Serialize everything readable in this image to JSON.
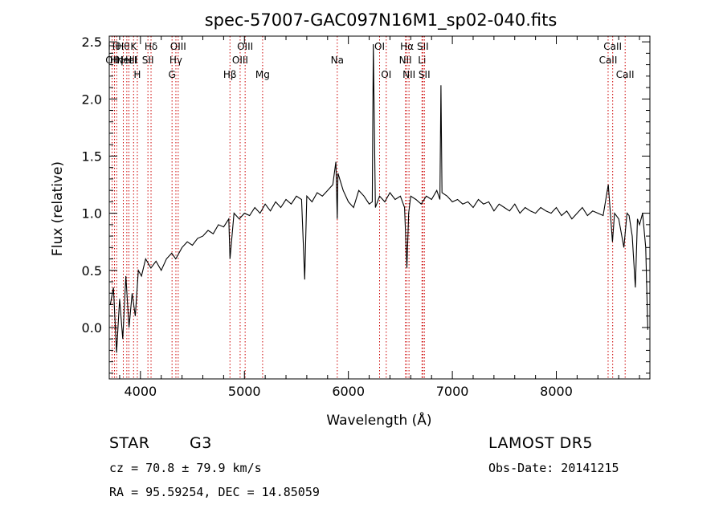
{
  "chart_data": {
    "type": "line",
    "title": "spec-57007-GAC097N16M1_sp02-040.fits",
    "xlabel": "Wavelength (Å)",
    "ylabel": "Flux (relative)",
    "xlim": [
      3700,
      8900
    ],
    "ylim": [
      -0.45,
      2.55
    ],
    "xticks": [
      4000,
      5000,
      6000,
      7000,
      8000
    ],
    "xtick_labels": [
      "4000",
      "5000",
      "6000",
      "7000",
      "8000"
    ],
    "yticks": [
      0.0,
      0.5,
      1.0,
      1.5,
      2.0,
      2.5
    ],
    "ytick_labels": [
      "0.0",
      "0.5",
      "1.0",
      "1.5",
      "2.0",
      "2.5"
    ],
    "grid": false,
    "series": [
      {
        "line_color": "#000000",
        "x": [
          3710,
          3740,
          3770,
          3800,
          3830,
          3860,
          3890,
          3920,
          3950,
          3980,
          4010,
          4050,
          4100,
          4150,
          4200,
          4250,
          4300,
          4340,
          4400,
          4450,
          4500,
          4550,
          4600,
          4650,
          4700,
          4750,
          4800,
          4850,
          4861,
          4900,
          4950,
          5000,
          5050,
          5100,
          5150,
          5200,
          5250,
          5300,
          5350,
          5400,
          5450,
          5500,
          5550,
          5580,
          5600,
          5650,
          5700,
          5750,
          5800,
          5850,
          5880,
          5893,
          5900,
          5950,
          6000,
          6050,
          6100,
          6150,
          6200,
          6230,
          6240,
          6260,
          6300,
          6350,
          6400,
          6450,
          6500,
          6540,
          6563,
          6580,
          6600,
          6650,
          6700,
          6750,
          6800,
          6850,
          6880,
          6890,
          6900,
          6950,
          7000,
          7050,
          7100,
          7150,
          7200,
          7250,
          7300,
          7350,
          7400,
          7450,
          7500,
          7550,
          7600,
          7650,
          7700,
          7750,
          7800,
          7850,
          7900,
          7950,
          8000,
          8050,
          8100,
          8150,
          8200,
          8250,
          8300,
          8350,
          8400,
          8450,
          8500,
          8540,
          8560,
          8600,
          8650,
          8680,
          8700,
          8730,
          8760,
          8780,
          8800,
          8830,
          8860,
          8880
        ],
        "y": [
          0.2,
          0.35,
          -0.22,
          0.25,
          -0.1,
          0.45,
          0.0,
          0.3,
          0.1,
          0.5,
          0.45,
          0.6,
          0.52,
          0.58,
          0.5,
          0.6,
          0.65,
          0.6,
          0.7,
          0.75,
          0.72,
          0.78,
          0.8,
          0.85,
          0.82,
          0.9,
          0.88,
          0.95,
          0.6,
          1.0,
          0.95,
          1.0,
          0.98,
          1.05,
          1.0,
          1.08,
          1.02,
          1.1,
          1.05,
          1.12,
          1.08,
          1.15,
          1.12,
          0.42,
          1.15,
          1.1,
          1.18,
          1.15,
          1.2,
          1.25,
          1.45,
          0.95,
          1.35,
          1.2,
          1.1,
          1.05,
          1.2,
          1.15,
          1.08,
          1.1,
          2.48,
          1.05,
          1.15,
          1.1,
          1.18,
          1.12,
          1.15,
          1.05,
          0.52,
          1.0,
          1.15,
          1.12,
          1.08,
          1.15,
          1.12,
          1.2,
          1.12,
          2.12,
          1.18,
          1.15,
          1.1,
          1.12,
          1.08,
          1.1,
          1.05,
          1.12,
          1.08,
          1.1,
          1.02,
          1.08,
          1.05,
          1.02,
          1.08,
          1.0,
          1.05,
          1.02,
          1.0,
          1.05,
          1.02,
          1.0,
          1.05,
          0.98,
          1.02,
          0.95,
          1.0,
          1.05,
          0.98,
          1.02,
          1.0,
          0.98,
          1.25,
          0.75,
          1.0,
          0.95,
          0.7,
          1.0,
          0.98,
          0.8,
          0.35,
          0.95,
          0.9,
          1.0,
          0.7,
          -0.02
        ]
      }
    ],
    "line_markers": {
      "line_color": "#cc0000",
      "lines": [
        {
          "x": 3727,
          "label": "OII",
          "row": 2
        },
        {
          "x": 3750,
          "label": "Hθ",
          "row": 1
        },
        {
          "x": 3771,
          "label": "Hη",
          "row": 2
        },
        {
          "x": 3835,
          "label": "Hθ",
          "row": 1
        },
        {
          "x": 3869,
          "label": "NeIII",
          "row": 2
        },
        {
          "x": 3889,
          "label": "HeI",
          "row": 2
        },
        {
          "x": 3934,
          "label": "K",
          "row": 1
        },
        {
          "x": 3970,
          "label": "H",
          "row": 3
        },
        {
          "x": 4072,
          "label": "SII",
          "row": 2
        },
        {
          "x": 4102,
          "label": "Hδ",
          "row": 1
        },
        {
          "x": 4304,
          "label": "G",
          "row": 3
        },
        {
          "x": 4341,
          "label": "Hγ",
          "row": 2
        },
        {
          "x": 4363,
          "label": "OIII",
          "row": 1
        },
        {
          "x": 4861,
          "label": "Hβ",
          "row": 3
        },
        {
          "x": 4959,
          "label": "OIII",
          "row": 2
        },
        {
          "x": 5007,
          "label": "OIII",
          "row": 1
        },
        {
          "x": 5175,
          "label": "Mg",
          "row": 3
        },
        {
          "x": 5893,
          "label": "Na",
          "row": 2
        },
        {
          "x": 6300,
          "label": "OI",
          "row": 1
        },
        {
          "x": 6364,
          "label": "OI",
          "row": 3
        },
        {
          "x": 6548,
          "label": "NII",
          "row": 2
        },
        {
          "x": 6563,
          "label": "Hα",
          "row": 1
        },
        {
          "x": 6583,
          "label": "NII",
          "row": 3
        },
        {
          "x": 6708,
          "label": "Li",
          "row": 2
        },
        {
          "x": 6716,
          "label": "SII",
          "row": 1
        },
        {
          "x": 6731,
          "label": "SII",
          "row": 3
        },
        {
          "x": 8498,
          "label": "CaII",
          "row": 2
        },
        {
          "x": 8542,
          "label": "CaII",
          "row": 1
        },
        {
          "x": 8662,
          "label": "CaII",
          "row": 3
        }
      ]
    }
  },
  "info": {
    "object_class": "STAR",
    "subclass": "G3",
    "survey": "LAMOST DR5",
    "cz": "cz = 70.8 ± 79.9 km/s",
    "obs_date": "Obs-Date: 20141215",
    "coords": "RA =  95.59254, DEC =  14.85059"
  }
}
